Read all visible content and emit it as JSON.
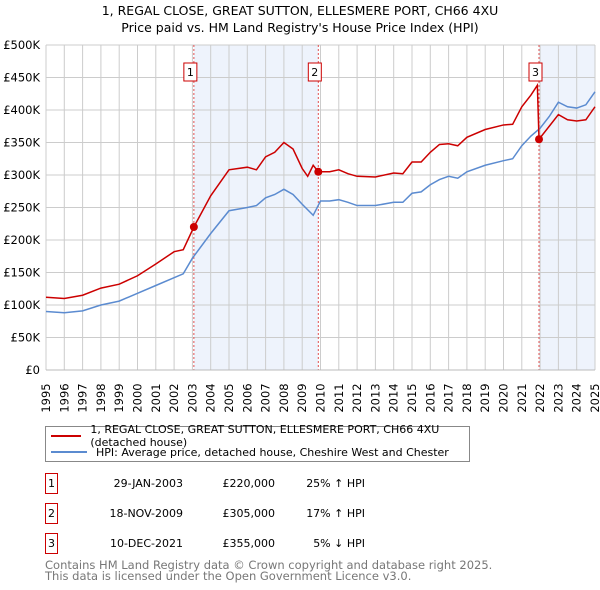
{
  "chart_data": {
    "type": "line",
    "title": "1, REGAL CLOSE, GREAT SUTTON, ELLESMERE PORT, CH66 4XU",
    "subtitle": "Price paid vs. HM Land Registry's House Price Index (HPI)",
    "xlabel": "",
    "ylabel": "",
    "xlim": [
      1995,
      2025
    ],
    "ylim": [
      0,
      500000
    ],
    "x_ticks": [
      "1995",
      "1996",
      "1997",
      "1998",
      "1999",
      "2000",
      "2001",
      "2002",
      "2003",
      "2004",
      "2005",
      "2006",
      "2007",
      "2008",
      "2009",
      "2010",
      "2011",
      "2012",
      "2013",
      "2014",
      "2015",
      "2016",
      "2017",
      "2018",
      "2019",
      "2020",
      "2021",
      "2022",
      "2023",
      "2024",
      "2025"
    ],
    "y_ticks": [
      {
        "v": 0,
        "label": "£0"
      },
      {
        "v": 50000,
        "label": "£50K"
      },
      {
        "v": 100000,
        "label": "£100K"
      },
      {
        "v": 150000,
        "label": "£150K"
      },
      {
        "v": 200000,
        "label": "£200K"
      },
      {
        "v": 250000,
        "label": "£250K"
      },
      {
        "v": 300000,
        "label": "£300K"
      },
      {
        "v": 350000,
        "label": "£350K"
      },
      {
        "v": 400000,
        "label": "£400K"
      },
      {
        "v": 450000,
        "label": "£450K"
      },
      {
        "v": 500000,
        "label": "£500K"
      }
    ],
    "grid": true,
    "series": [
      {
        "name": "1, REGAL CLOSE, GREAT SUTTON, ELLESMERE PORT, CH66 4XU (detached house)",
        "color": "#cc0000",
        "x": [
          1995,
          1996,
          1997,
          1998,
          1999,
          2000,
          2001,
          2002,
          2002.5,
          2003.08,
          2004,
          2005,
          2006,
          2006.5,
          2007,
          2007.5,
          2008,
          2008.5,
          2009,
          2009.3,
          2009.6,
          2009.88,
          2010.5,
          2011,
          2011.5,
          2012,
          2013,
          2014,
          2014.5,
          2015,
          2015.5,
          2016,
          2016.5,
          2017,
          2017.5,
          2018,
          2019,
          2020,
          2020.5,
          2021,
          2021.5,
          2021.85,
          2021.94,
          2022.5,
          2023,
          2023.5,
          2024,
          2024.5,
          2025
        ],
        "y": [
          112,
          110,
          115,
          126,
          132,
          145,
          163,
          182,
          185,
          220,
          268,
          308,
          312,
          308,
          328,
          335,
          350,
          340,
          310,
          298,
          315,
          305,
          305,
          308,
          302,
          298,
          297,
          303,
          302,
          320,
          320,
          335,
          347,
          348,
          345,
          358,
          370,
          377,
          378,
          405,
          423,
          438,
          355,
          375,
          393,
          385,
          383,
          385,
          405
        ]
      },
      {
        "name": "HPI: Average price, detached house, Cheshire West and Chester",
        "color": "#5b8bd0",
        "x": [
          1995,
          1996,
          1997,
          1998,
          1999,
          2000,
          2001,
          2002,
          2002.5,
          2003,
          2004,
          2005,
          2006,
          2006.5,
          2007,
          2007.5,
          2008,
          2008.5,
          2009,
          2009.6,
          2010,
          2010.5,
          2011,
          2011.5,
          2012,
          2013,
          2014,
          2014.5,
          2015,
          2015.5,
          2016,
          2016.5,
          2017,
          2017.5,
          2018,
          2019,
          2020,
          2020.5,
          2021,
          2021.5,
          2022,
          2022.5,
          2023,
          2023.5,
          2024,
          2024.5,
          2025
        ],
        "y": [
          90,
          88,
          91,
          100,
          106,
          118,
          130,
          142,
          148,
          172,
          210,
          245,
          250,
          253,
          265,
          270,
          278,
          270,
          255,
          238,
          260,
          260,
          262,
          258,
          253,
          253,
          258,
          258,
          272,
          274,
          285,
          293,
          298,
          295,
          305,
          315,
          322,
          325,
          345,
          360,
          372,
          390,
          412,
          405,
          403,
          408,
          428
        ]
      }
    ],
    "y_units_multiplier": 1000,
    "shaded_ranges": [
      [
        2003.08,
        2009.88
      ],
      [
        2021.94,
        2025
      ]
    ],
    "sales": [
      {
        "n": "1",
        "x": 2003.08,
        "y": 220,
        "date": "29-JAN-2003",
        "price": "£220,000",
        "hpi": "25% ↑ HPI"
      },
      {
        "n": "2",
        "x": 2009.88,
        "y": 305,
        "date": "18-NOV-2009",
        "price": "£305,000",
        "hpi": "17% ↑ HPI"
      },
      {
        "n": "3",
        "x": 2021.94,
        "y": 355,
        "date": "10-DEC-2021",
        "price": "£355,000",
        "hpi": "5% ↓ HPI"
      }
    ],
    "legend_position": "below"
  },
  "footer": {
    "line1": "Contains HM Land Registry data © Crown copyright and database right 2025.",
    "line2": "This data is licensed under the Open Government Licence v3.0."
  }
}
